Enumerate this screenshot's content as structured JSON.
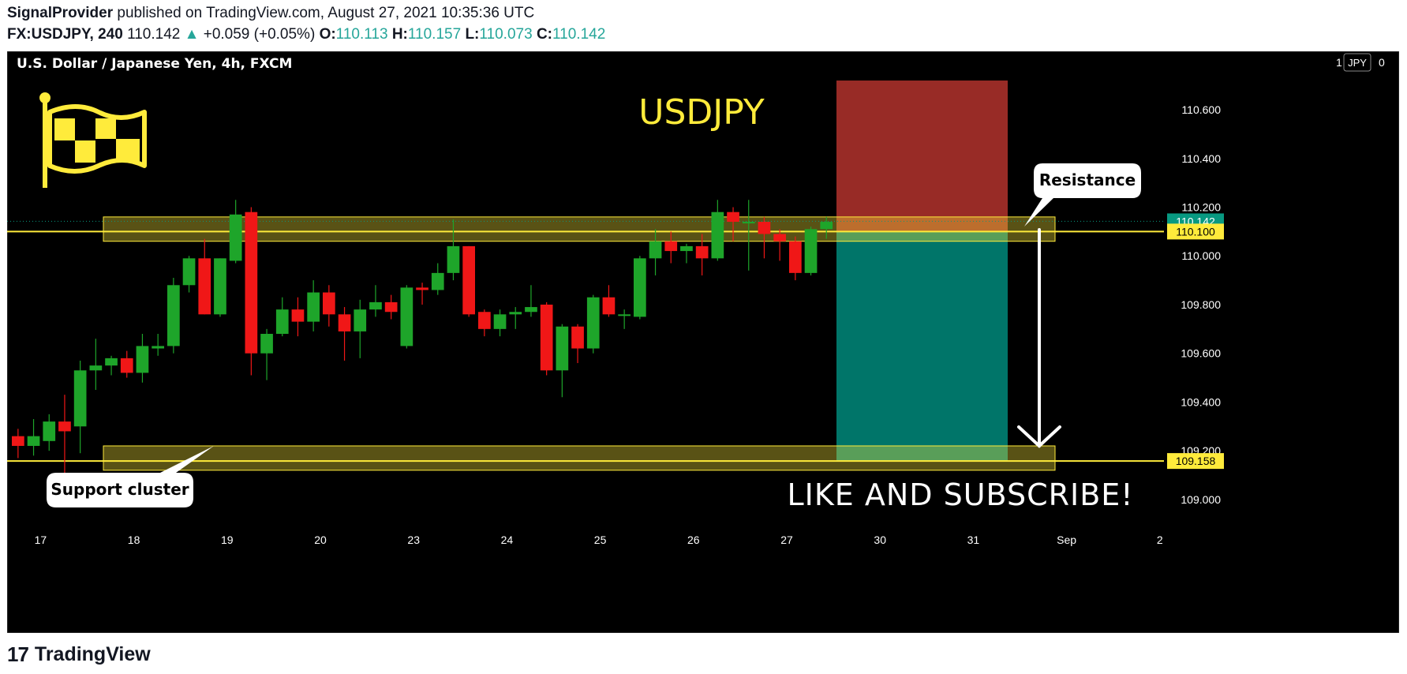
{
  "header": {
    "publisher": "SignalProvider",
    "published_text": "published on TradingView.com, August 27, 2021 10:35:36 UTC",
    "symbol": "FX:USDJPY, 240",
    "last": "110.142",
    "change": "+0.059 (+0.05%)",
    "open_label": "O:",
    "open": "110.113",
    "high_label": "H:",
    "high": "110.157",
    "low_label": "L:",
    "low": "110.073",
    "close_label": "C:",
    "close": "110.142"
  },
  "footer": {
    "brand": "TradingView",
    "logo_text": "17"
  },
  "chart_data": {
    "type": "candlestick",
    "title": "U.S. Dollar / Japanese Yen, 4h, FXCM",
    "watermark": "USDJPY",
    "currency_badge": "JPY",
    "scale_left": "1",
    "scale_right": "0",
    "ylim": [
      108.87,
      110.84
    ],
    "y_ticks": [
      110.6,
      110.4,
      110.2,
      110.0,
      109.8,
      109.6,
      109.4,
      109.2,
      109.0
    ],
    "y_tick_labels": [
      "110.600",
      "110.400",
      "110.200",
      "110.000",
      "109.800",
      "109.600",
      "109.400",
      "109.200",
      "109.000"
    ],
    "x_ticks": [
      {
        "label": "17",
        "bar": 2
      },
      {
        "label": "18",
        "bar": 8
      },
      {
        "label": "19",
        "bar": 14
      },
      {
        "label": "20",
        "bar": 20
      },
      {
        "label": "23",
        "bar": 26
      },
      {
        "label": "24",
        "bar": 32
      },
      {
        "label": "25",
        "bar": 38
      },
      {
        "label": "26",
        "bar": 44
      },
      {
        "label": "27",
        "bar": 50
      },
      {
        "label": "30",
        "bar": 56
      },
      {
        "label": "31",
        "bar": 62
      },
      {
        "label": "Sep",
        "bar": 68
      },
      {
        "label": "2",
        "bar": 74
      }
    ],
    "candles": [
      {
        "o": 109.26,
        "h": 109.29,
        "l": 109.17,
        "c": 109.22
      },
      {
        "o": 109.22,
        "h": 109.33,
        "l": 109.18,
        "c": 109.26
      },
      {
        "o": 109.24,
        "h": 109.35,
        "l": 109.2,
        "c": 109.32
      },
      {
        "o": 109.32,
        "h": 109.43,
        "l": 109.1,
        "c": 109.28
      },
      {
        "o": 109.3,
        "h": 109.57,
        "l": 109.19,
        "c": 109.53
      },
      {
        "o": 109.53,
        "h": 109.66,
        "l": 109.45,
        "c": 109.55
      },
      {
        "o": 109.55,
        "h": 109.59,
        "l": 109.51,
        "c": 109.58
      },
      {
        "o": 109.58,
        "h": 109.61,
        "l": 109.5,
        "c": 109.52
      },
      {
        "o": 109.52,
        "h": 109.68,
        "l": 109.48,
        "c": 109.63
      },
      {
        "o": 109.62,
        "h": 109.68,
        "l": 109.59,
        "c": 109.63
      },
      {
        "o": 109.63,
        "h": 109.91,
        "l": 109.6,
        "c": 109.88
      },
      {
        "o": 109.88,
        "h": 110.0,
        "l": 109.85,
        "c": 109.99
      },
      {
        "o": 109.99,
        "h": 110.07,
        "l": 109.76,
        "c": 109.76
      },
      {
        "o": 109.76,
        "h": 109.99,
        "l": 109.75,
        "c": 109.99
      },
      {
        "o": 109.98,
        "h": 110.23,
        "l": 109.97,
        "c": 110.17
      },
      {
        "o": 110.18,
        "h": 110.2,
        "l": 109.51,
        "c": 109.6
      },
      {
        "o": 109.6,
        "h": 109.7,
        "l": 109.49,
        "c": 109.68
      },
      {
        "o": 109.68,
        "h": 109.83,
        "l": 109.67,
        "c": 109.78
      },
      {
        "o": 109.78,
        "h": 109.83,
        "l": 109.67,
        "c": 109.73
      },
      {
        "o": 109.73,
        "h": 109.9,
        "l": 109.69,
        "c": 109.85
      },
      {
        "o": 109.85,
        "h": 109.88,
        "l": 109.71,
        "c": 109.76
      },
      {
        "o": 109.76,
        "h": 109.79,
        "l": 109.57,
        "c": 109.69
      },
      {
        "o": 109.69,
        "h": 109.82,
        "l": 109.58,
        "c": 109.78
      },
      {
        "o": 109.78,
        "h": 109.88,
        "l": 109.75,
        "c": 109.81
      },
      {
        "o": 109.81,
        "h": 109.84,
        "l": 109.74,
        "c": 109.77
      },
      {
        "o": 109.63,
        "h": 109.88,
        "l": 109.62,
        "c": 109.87
      },
      {
        "o": 109.87,
        "h": 109.89,
        "l": 109.8,
        "c": 109.86
      },
      {
        "o": 109.86,
        "h": 109.97,
        "l": 109.84,
        "c": 109.93
      },
      {
        "o": 109.93,
        "h": 110.15,
        "l": 109.9,
        "c": 110.04
      },
      {
        "o": 110.04,
        "h": 110.04,
        "l": 109.75,
        "c": 109.76
      },
      {
        "o": 109.77,
        "h": 109.78,
        "l": 109.67,
        "c": 109.7
      },
      {
        "o": 109.7,
        "h": 109.78,
        "l": 109.67,
        "c": 109.76
      },
      {
        "o": 109.76,
        "h": 109.79,
        "l": 109.7,
        "c": 109.77
      },
      {
        "o": 109.77,
        "h": 109.88,
        "l": 109.75,
        "c": 109.79
      },
      {
        "o": 109.8,
        "h": 109.81,
        "l": 109.51,
        "c": 109.53
      },
      {
        "o": 109.53,
        "h": 109.72,
        "l": 109.42,
        "c": 109.71
      },
      {
        "o": 109.71,
        "h": 109.72,
        "l": 109.56,
        "c": 109.62
      },
      {
        "o": 109.62,
        "h": 109.84,
        "l": 109.6,
        "c": 109.83
      },
      {
        "o": 109.83,
        "h": 109.88,
        "l": 109.75,
        "c": 109.76
      },
      {
        "o": 109.76,
        "h": 109.78,
        "l": 109.7,
        "c": 109.76
      },
      {
        "o": 109.75,
        "h": 110.0,
        "l": 109.74,
        "c": 109.99
      },
      {
        "o": 109.99,
        "h": 110.11,
        "l": 109.92,
        "c": 110.06
      },
      {
        "o": 110.06,
        "h": 110.1,
        "l": 109.97,
        "c": 110.02
      },
      {
        "o": 110.02,
        "h": 110.05,
        "l": 109.97,
        "c": 110.04
      },
      {
        "o": 110.04,
        "h": 110.09,
        "l": 109.92,
        "c": 109.99
      },
      {
        "o": 109.99,
        "h": 110.23,
        "l": 109.98,
        "c": 110.18
      },
      {
        "o": 110.18,
        "h": 110.2,
        "l": 110.06,
        "c": 110.14
      },
      {
        "o": 110.14,
        "h": 110.23,
        "l": 109.94,
        "c": 110.14
      },
      {
        "o": 110.14,
        "h": 110.16,
        "l": 109.99,
        "c": 110.09
      },
      {
        "o": 110.09,
        "h": 110.11,
        "l": 109.98,
        "c": 110.06
      },
      {
        "o": 110.06,
        "h": 110.08,
        "l": 109.9,
        "c": 109.93
      },
      {
        "o": 109.93,
        "h": 110.12,
        "l": 109.92,
        "c": 110.11
      },
      {
        "o": 110.11,
        "h": 110.16,
        "l": 110.07,
        "c": 110.14
      }
    ],
    "price_labels": [
      {
        "text": "110.142",
        "value": 110.142,
        "color": "#089981"
      },
      {
        "text": "110.100",
        "value": 110.1,
        "color": "#ffeb3b"
      },
      {
        "text": "109.158",
        "value": 109.158,
        "color": "#ffeb3b"
      }
    ],
    "zones": {
      "resistance_band": [
        110.06,
        110.16
      ],
      "support_band": [
        109.12,
        109.22
      ],
      "resistance_line": 110.1,
      "support_line": 109.158,
      "stop_box": [
        110.1,
        110.72
      ],
      "target_box": [
        109.158,
        110.1
      ]
    },
    "annotations": {
      "resistance": "Resistance",
      "support": "Support cluster",
      "cta": "LIKE AND SUBSCRIBE!"
    },
    "colors": {
      "up": "#1ea52a",
      "down": "#f01717",
      "background": "#000000",
      "zone": "#ffeb3b",
      "stop": "#b3332d",
      "target": "#00897b",
      "text": "#ffffff"
    }
  }
}
